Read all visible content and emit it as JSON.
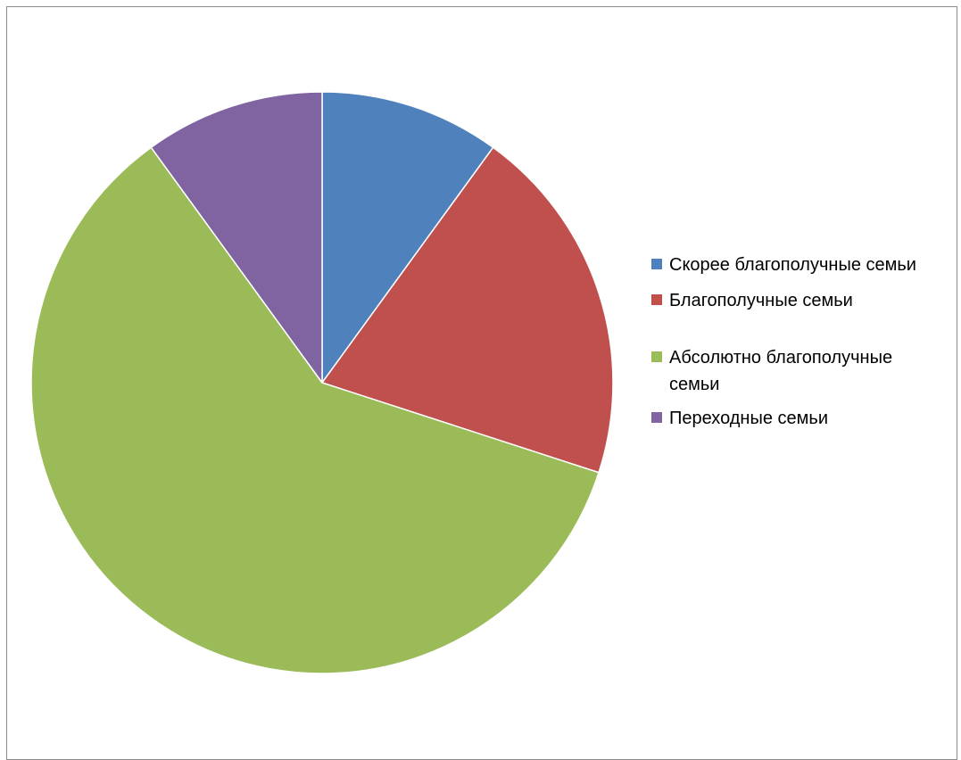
{
  "chart_data": {
    "type": "pie",
    "start_angle_deg": 0,
    "direction": "clockwise",
    "slices": [
      {
        "label": "Скорее благополучные семьи",
        "value": 10,
        "color": "#4f81bd"
      },
      {
        "label": "Благополучные семьи",
        "value": 20,
        "color": "#c0504d"
      },
      {
        "label": "Абсолютно благополучные семьи",
        "value": 60,
        "color": "#9bbb59"
      },
      {
        "label": "Переходные семьи",
        "value": 10,
        "color": "#8064a2"
      }
    ],
    "legend_position": "right"
  }
}
